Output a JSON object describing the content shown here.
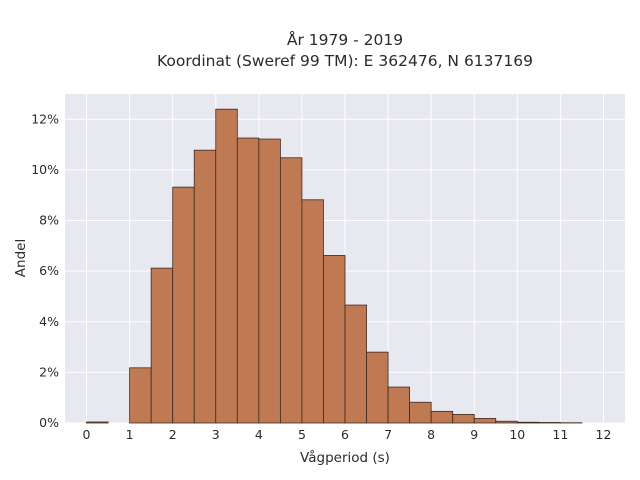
{
  "chart_data": {
    "type": "bar",
    "title": [
      "År 1979 - 2019",
      "Koordinat (Sweref 99 TM): E 362476, N 6137169"
    ],
    "xlabel": "Vågperiod (s)",
    "ylabel": "Andel",
    "xlim": [
      -0.5,
      12.5
    ],
    "ylim": [
      0,
      0.13
    ],
    "xticks": [
      0,
      1,
      2,
      3,
      4,
      5,
      6,
      7,
      8,
      9,
      10,
      11,
      12
    ],
    "yticks": [
      0,
      0.02,
      0.04,
      0.06,
      0.08,
      0.1,
      0.12
    ],
    "ytick_labels": [
      "0%",
      "2%",
      "4%",
      "6%",
      "8%",
      "10%",
      "12%"
    ],
    "bin_width": 0.5,
    "bins": [
      {
        "x0": 0.0,
        "value": 0.0004
      },
      {
        "x0": 1.0,
        "value": 0.0218
      },
      {
        "x0": 1.5,
        "value": 0.0612
      },
      {
        "x0": 2.0,
        "value": 0.0932
      },
      {
        "x0": 2.5,
        "value": 0.1078
      },
      {
        "x0": 3.0,
        "value": 0.124
      },
      {
        "x0": 3.5,
        "value": 0.1126
      },
      {
        "x0": 4.0,
        "value": 0.1122
      },
      {
        "x0": 4.5,
        "value": 0.1048
      },
      {
        "x0": 5.0,
        "value": 0.0882
      },
      {
        "x0": 5.5,
        "value": 0.0662
      },
      {
        "x0": 6.0,
        "value": 0.0466
      },
      {
        "x0": 6.5,
        "value": 0.028
      },
      {
        "x0": 7.0,
        "value": 0.0142
      },
      {
        "x0": 7.5,
        "value": 0.0082
      },
      {
        "x0": 8.0,
        "value": 0.0046
      },
      {
        "x0": 8.5,
        "value": 0.0034
      },
      {
        "x0": 9.0,
        "value": 0.0018
      },
      {
        "x0": 9.5,
        "value": 0.0007
      },
      {
        "x0": 10.0,
        "value": 0.0003
      },
      {
        "x0": 10.5,
        "value": 0.0002
      },
      {
        "x0": 11.0,
        "value": 0.0001
      }
    ],
    "grid": true,
    "colors": {
      "bar_fill": "#bf7a54",
      "bar_edge": "#3d2a20",
      "plot_bg": "#e8e8f1",
      "grid": "#ffffff",
      "text": "#2b2b2b"
    }
  }
}
